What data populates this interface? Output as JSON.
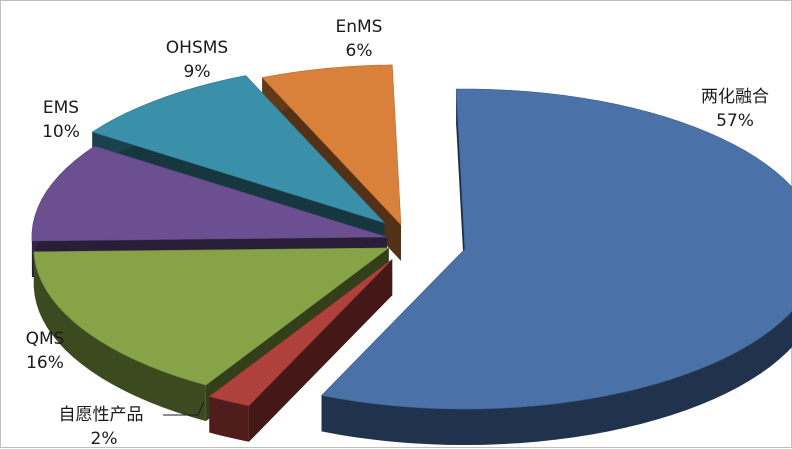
{
  "chart_data": {
    "type": "pie",
    "title": "",
    "categories": [
      "两化融合",
      "自愿性产品",
      "QMS",
      "EMS",
      "OHSMS",
      "EnMS"
    ],
    "values": [
      57,
      2,
      16,
      10,
      9,
      6
    ],
    "value_labels": [
      "57%",
      "2%",
      "16%",
      "10%",
      "9%",
      "6%"
    ],
    "colors": [
      "#4a71a8",
      "#b0403c",
      "#86a447",
      "#6c4f91",
      "#3a90a8",
      "#d9813a"
    ],
    "style": "3d-exploded",
    "legend": "none"
  }
}
